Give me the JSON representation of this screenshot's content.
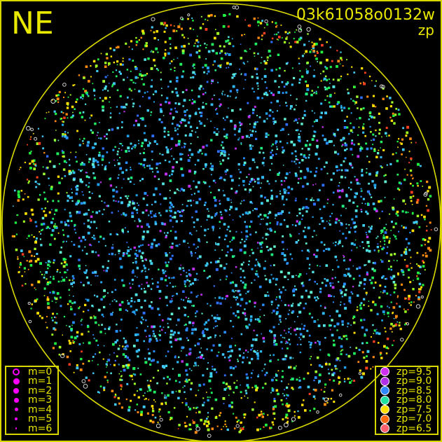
{
  "header": {
    "direction": "NE",
    "frame_id": "03k61058o0132w",
    "quantity": "zp"
  },
  "colors": {
    "frame": "#d8d800",
    "text": "#e8e800",
    "background": "#000000",
    "marker_fill": "#ff00ff"
  },
  "magnitude_legend": [
    {
      "label": "m=0",
      "style": "ring"
    },
    {
      "label": "m=1",
      "style": "dot"
    },
    {
      "label": "m=2",
      "style": "dot"
    },
    {
      "label": "m=3",
      "style": "dot"
    },
    {
      "label": "m=4",
      "style": "dot"
    },
    {
      "label": "m=5",
      "style": "dot"
    },
    {
      "label": "m=6",
      "style": "dot"
    }
  ],
  "zp_legend": [
    {
      "label": "zp=9.5",
      "color": "#d030f0"
    },
    {
      "label": "zp=9.0",
      "color": "#b030e8"
    },
    {
      "label": "zp=8.5",
      "color": "#3088ff"
    },
    {
      "label": "zp=8.0",
      "color": "#20e0a0"
    },
    {
      "label": "zp=7.5",
      "color": "#ffe000"
    },
    {
      "label": "zp=7.0",
      "color": "#ff6a10"
    },
    {
      "label": "zp=6.5",
      "color": "#ff6070"
    }
  ],
  "chart_data": {
    "type": "scatter",
    "title": "03k61058o0132w",
    "subtitle": "zp",
    "field": "all-sky circle, NE orientation",
    "color_by": "zp",
    "size_by": "m",
    "zp_range": [
      6.5,
      9.5
    ],
    "m_range": [
      0,
      6
    ],
    "dominant_zp": "8.5-9.0 in the center, 7.5-8.0 near the horizon",
    "legend": [
      "top-left: none",
      "bottom-left: magnitude",
      "bottom-right: zp"
    ],
    "grid": false
  }
}
